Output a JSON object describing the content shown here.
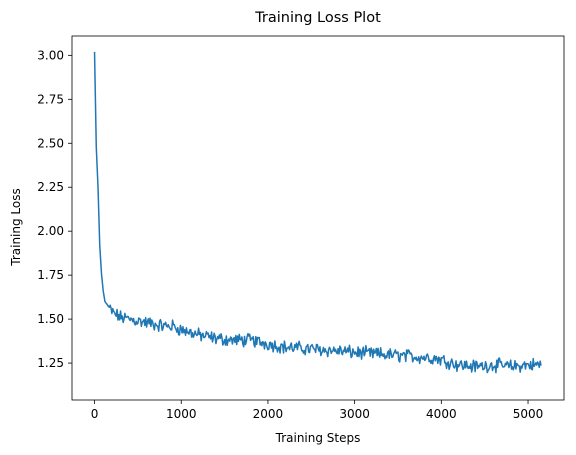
{
  "chart_data": {
    "type": "line",
    "title": "Training Loss Plot",
    "xlabel": "Training Steps",
    "ylabel": "Training Loss",
    "xlim": [
      -260,
      5415
    ],
    "ylim": [
      1.04,
      3.11
    ],
    "xticks": [
      0,
      1000,
      2000,
      3000,
      4000,
      5000
    ],
    "xtick_labels": [
      "0",
      "1000",
      "2000",
      "3000",
      "4000",
      "5000"
    ],
    "yticks": [
      1.25,
      1.5,
      1.75,
      2.0,
      2.25,
      2.5,
      2.75,
      3.0
    ],
    "ytick_labels": [
      "1.25",
      "1.50",
      "1.75",
      "2.00",
      "2.25",
      "2.50",
      "2.75",
      "3.00"
    ],
    "grid": false,
    "legend": "none",
    "series": [
      {
        "color": "#1f77b4",
        "x_start": 0,
        "x_end": 5150,
        "anchors": [
          [
            0,
            3.02
          ],
          [
            20,
            2.48
          ],
          [
            40,
            2.25
          ],
          [
            60,
            1.92
          ],
          [
            80,
            1.76
          ],
          [
            100,
            1.66
          ],
          [
            120,
            1.6
          ],
          [
            150,
            1.58
          ],
          [
            200,
            1.54
          ],
          [
            300,
            1.51
          ],
          [
            400,
            1.5
          ],
          [
            500,
            1.49
          ],
          [
            600,
            1.48
          ],
          [
            700,
            1.47
          ],
          [
            800,
            1.46
          ],
          [
            900,
            1.46
          ],
          [
            1000,
            1.44
          ],
          [
            1200,
            1.41
          ],
          [
            1400,
            1.39
          ],
          [
            1600,
            1.38
          ],
          [
            1800,
            1.38
          ],
          [
            2000,
            1.36
          ],
          [
            2200,
            1.34
          ],
          [
            2500,
            1.33
          ],
          [
            2800,
            1.32
          ],
          [
            3000,
            1.31
          ],
          [
            3300,
            1.3
          ],
          [
            3600,
            1.29
          ],
          [
            3900,
            1.28
          ],
          [
            4000,
            1.27
          ],
          [
            4200,
            1.24
          ],
          [
            4400,
            1.23
          ],
          [
            4600,
            1.24
          ],
          [
            4800,
            1.23
          ],
          [
            5000,
            1.24
          ],
          [
            5150,
            1.24
          ]
        ],
        "noise_amplitude": 0.03
      }
    ]
  }
}
